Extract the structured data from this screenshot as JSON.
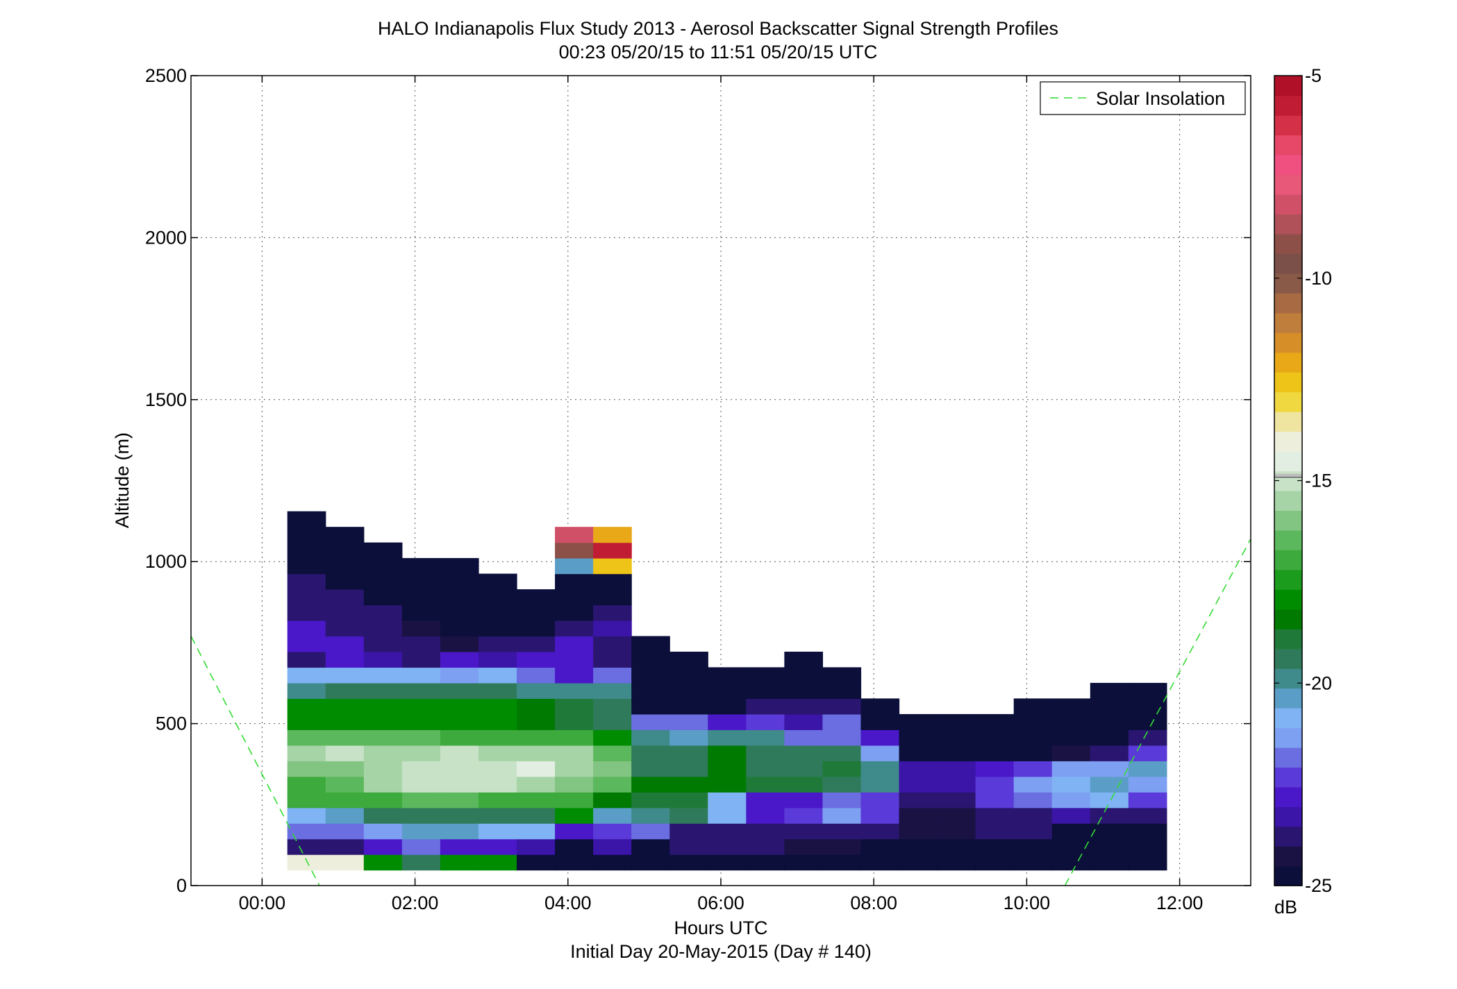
{
  "chart_data": {
    "type": "heatmap",
    "title": "HALO Indianapolis Flux Study 2013 - Aerosol Backscatter Signal Strength Profiles",
    "subtitle": "00:23 05/20/15 to 11:51 05/20/15  UTC",
    "xlabel": "Hours UTC",
    "xlabel2": "Initial Day 20-May-2015 (Day # 140)",
    "ylabel": "Altitude (m)",
    "xlim": [
      -0.93,
      12.93
    ],
    "ylim": [
      0,
      2500
    ],
    "x_ticks": [
      0,
      2,
      4,
      6,
      8,
      10,
      12
    ],
    "x_tick_labels": [
      "00:00",
      "02:00",
      "04:00",
      "06:00",
      "08:00",
      "10:00",
      "12:00"
    ],
    "y_ticks": [
      0,
      500,
      1000,
      1500,
      2000,
      2500
    ],
    "y_tick_labels": [
      "0",
      "500",
      "1000",
      "1500",
      "2000",
      "2500"
    ],
    "grid": true,
    "legend": {
      "position": "top-right",
      "entries": [
        "Solar Insolation"
      ]
    },
    "colorbar": {
      "min": -25,
      "max": -5,
      "unit": "dB",
      "ticks": [
        -5,
        -10,
        -15,
        -20,
        -25
      ],
      "tick_labels": [
        "-5",
        "-10",
        "-15",
        "-20",
        "-25"
      ],
      "colors": [
        "#0b0f3a",
        "#1b1244",
        "#2a1670",
        "#3b14a8",
        "#4a18c8",
        "#5a3ad8",
        "#6a6ee0",
        "#7ea0f2",
        "#7fb3f4",
        "#5a9ec8",
        "#3f8a8a",
        "#2f7a5a",
        "#1f7a3a",
        "#007a00",
        "#008c00",
        "#1c9c1c",
        "#3caa3c",
        "#5cb85c",
        "#82c482",
        "#a6d4a6",
        "#c8e2c8",
        "#e2eee2",
        "#eeeedc",
        "#efe4a0",
        "#efd840",
        "#eec418",
        "#e8a818",
        "#d68e28",
        "#c07e3c",
        "#a86a42",
        "#8a5a48",
        "#7a5048",
        "#8c5048",
        "#b05058",
        "#d05068",
        "#e85878",
        "#f05080",
        "#e84868",
        "#d43048",
        "#c01c34",
        "#b01028"
      ],
      "calibration_band_value": -14.9
    },
    "cells": {
      "columns_hours": [
        0.58,
        1.08,
        1.58,
        2.08,
        2.58,
        3.08,
        3.58,
        4.08,
        4.58,
        5.08,
        5.58,
        6.08,
        6.58,
        7.08,
        7.58,
        8.08,
        8.58,
        9.08,
        9.58,
        10.08,
        10.58,
        11.08,
        11.58
      ],
      "column_width_hours": 0.5,
      "row_height_m": 48.15,
      "first_row_center_m": 72,
      "columns": [
        [
          -14,
          -24,
          -22,
          -21,
          -17,
          -17,
          -16,
          -15.5,
          -16.5,
          -18,
          -18,
          -20,
          -21,
          -24,
          -23,
          -23,
          -24,
          -24,
          -24,
          -25,
          -25,
          -25,
          -25
        ],
        [
          -14,
          -24,
          -22,
          -20.5,
          -17,
          -16.5,
          -16,
          -15.2,
          -16.5,
          -18,
          -18,
          -19.5,
          -21,
          -23,
          -23,
          -24,
          -24,
          -24,
          -25,
          -25,
          -25,
          -25
        ],
        [
          -18,
          -23,
          -21.5,
          -19.5,
          -17,
          -15.5,
          -15.5,
          -15.5,
          -16.5,
          -18,
          -18,
          -19.5,
          -21,
          -23.5,
          -24,
          -24,
          -24,
          -25,
          -25,
          -25,
          -25
        ],
        [
          -19.5,
          -22,
          -20.5,
          -19.5,
          -16.5,
          -15.2,
          -15,
          -15.3,
          -16.5,
          -18,
          -18,
          -19.5,
          -21,
          -24,
          -24,
          -24.5,
          -25,
          -25,
          -25,
          -25
        ],
        [
          -18,
          -23,
          -20.5,
          -19.5,
          -16.5,
          -15,
          -14.8,
          -15.2,
          -16.8,
          -18,
          -18,
          -19.5,
          -21.5,
          -23,
          -24.5,
          -25,
          -25,
          -25,
          -25,
          -25
        ],
        [
          -18,
          -23,
          -21,
          -19.5,
          -16.8,
          -15.2,
          -15,
          -15.5,
          -16.8,
          -18,
          -18,
          -19.5,
          -21,
          -23.5,
          -24,
          -25,
          -25,
          -25,
          -25
        ],
        [
          -25,
          -23.5,
          -21,
          -19.5,
          -17,
          -15.6,
          -14.6,
          -15.3,
          -17.2,
          -18.5,
          -18.5,
          -20,
          -22,
          -23,
          -24,
          -25,
          -25,
          -25
        ],
        [
          -25,
          -25,
          -23,
          -18,
          -17,
          -16,
          -15.3,
          -15.5,
          -17,
          -19,
          -19,
          -20,
          -23,
          -23,
          -23,
          -24,
          -25,
          -25,
          -25,
          -20.5,
          -9,
          -8
        ],
        [
          -25,
          -23.5,
          -22.5,
          -20.5,
          -18.5,
          -16.5,
          -16,
          -16.5,
          -18,
          -19.5,
          -19.5,
          -20,
          -22,
          -24,
          -24,
          -23.5,
          -24,
          -25,
          -25,
          -12.5,
          -5.5,
          -12
        ],
        [
          -25,
          -25,
          -22,
          -20,
          -19,
          -18.5,
          -19.5,
          -19.5,
          -20,
          -22,
          -25,
          -25,
          -25,
          -25,
          -25
        ],
        [
          -25,
          -24,
          -24,
          -19.5,
          -19,
          -18.5,
          -19.5,
          -19.5,
          -20.5,
          -22,
          -25,
          -25,
          -25,
          -25
        ],
        [
          -25,
          -24,
          -24,
          -21,
          -21,
          -18.5,
          -18.5,
          -18.5,
          -20,
          -23,
          -25,
          -25,
          -25
        ],
        [
          -25,
          -24,
          -24,
          -23,
          -23,
          -19,
          -19.5,
          -19.5,
          -20,
          -22.5,
          -24,
          -25,
          -25
        ],
        [
          -25,
          -24.5,
          -24,
          -22.5,
          -23,
          -19,
          -19.5,
          -19.5,
          -22,
          -23.5,
          -24,
          -25,
          -25,
          -25
        ],
        [
          -25,
          -24.5,
          -24,
          -21.5,
          -22,
          -19.5,
          -19,
          -19.5,
          -22,
          -22,
          -24,
          -25,
          -25
        ],
        [
          -25,
          -25,
          -24,
          -22.5,
          -22.5,
          -20,
          -20,
          -21.5,
          -23,
          -25,
          -25
        ],
        [
          -25,
          -25,
          -24.5,
          -24.5,
          -24,
          -23.5,
          -23.5,
          -25,
          -25,
          -25
        ],
        [
          -25,
          -25,
          -24.5,
          -24.5,
          -24,
          -23.5,
          -23.5,
          -25,
          -25,
          -25
        ],
        [
          -25,
          -25,
          -24,
          -24,
          -22.5,
          -22.5,
          -23,
          -25,
          -25,
          -25
        ],
        [
          -25,
          -25,
          -24,
          -24,
          -22,
          -21.5,
          -22.5,
          -25,
          -25,
          -25,
          -25
        ],
        [
          -25,
          -25,
          -25,
          -23.5,
          -21.5,
          -21,
          -21.5,
          -24.5,
          -25,
          -25,
          -25
        ],
        [
          -25,
          -25,
          -25,
          -24,
          -21,
          -20.5,
          -21.5,
          -24,
          -25,
          -25,
          -25,
          -25
        ],
        [
          -25,
          -25,
          -25,
          -24,
          -22.5,
          -21.5,
          -20.5,
          -22.5,
          -24,
          -25,
          -25,
          -25
        ]
      ]
    },
    "solar_insolation": {
      "name": "Solar Insolation",
      "color": "#33dd33",
      "segments": [
        {
          "x": [
            -0.93,
            0.75
          ],
          "y": [
            770,
            0
          ]
        },
        {
          "x": [
            10.5,
            12.93
          ],
          "y": [
            0,
            1070
          ]
        }
      ]
    }
  }
}
